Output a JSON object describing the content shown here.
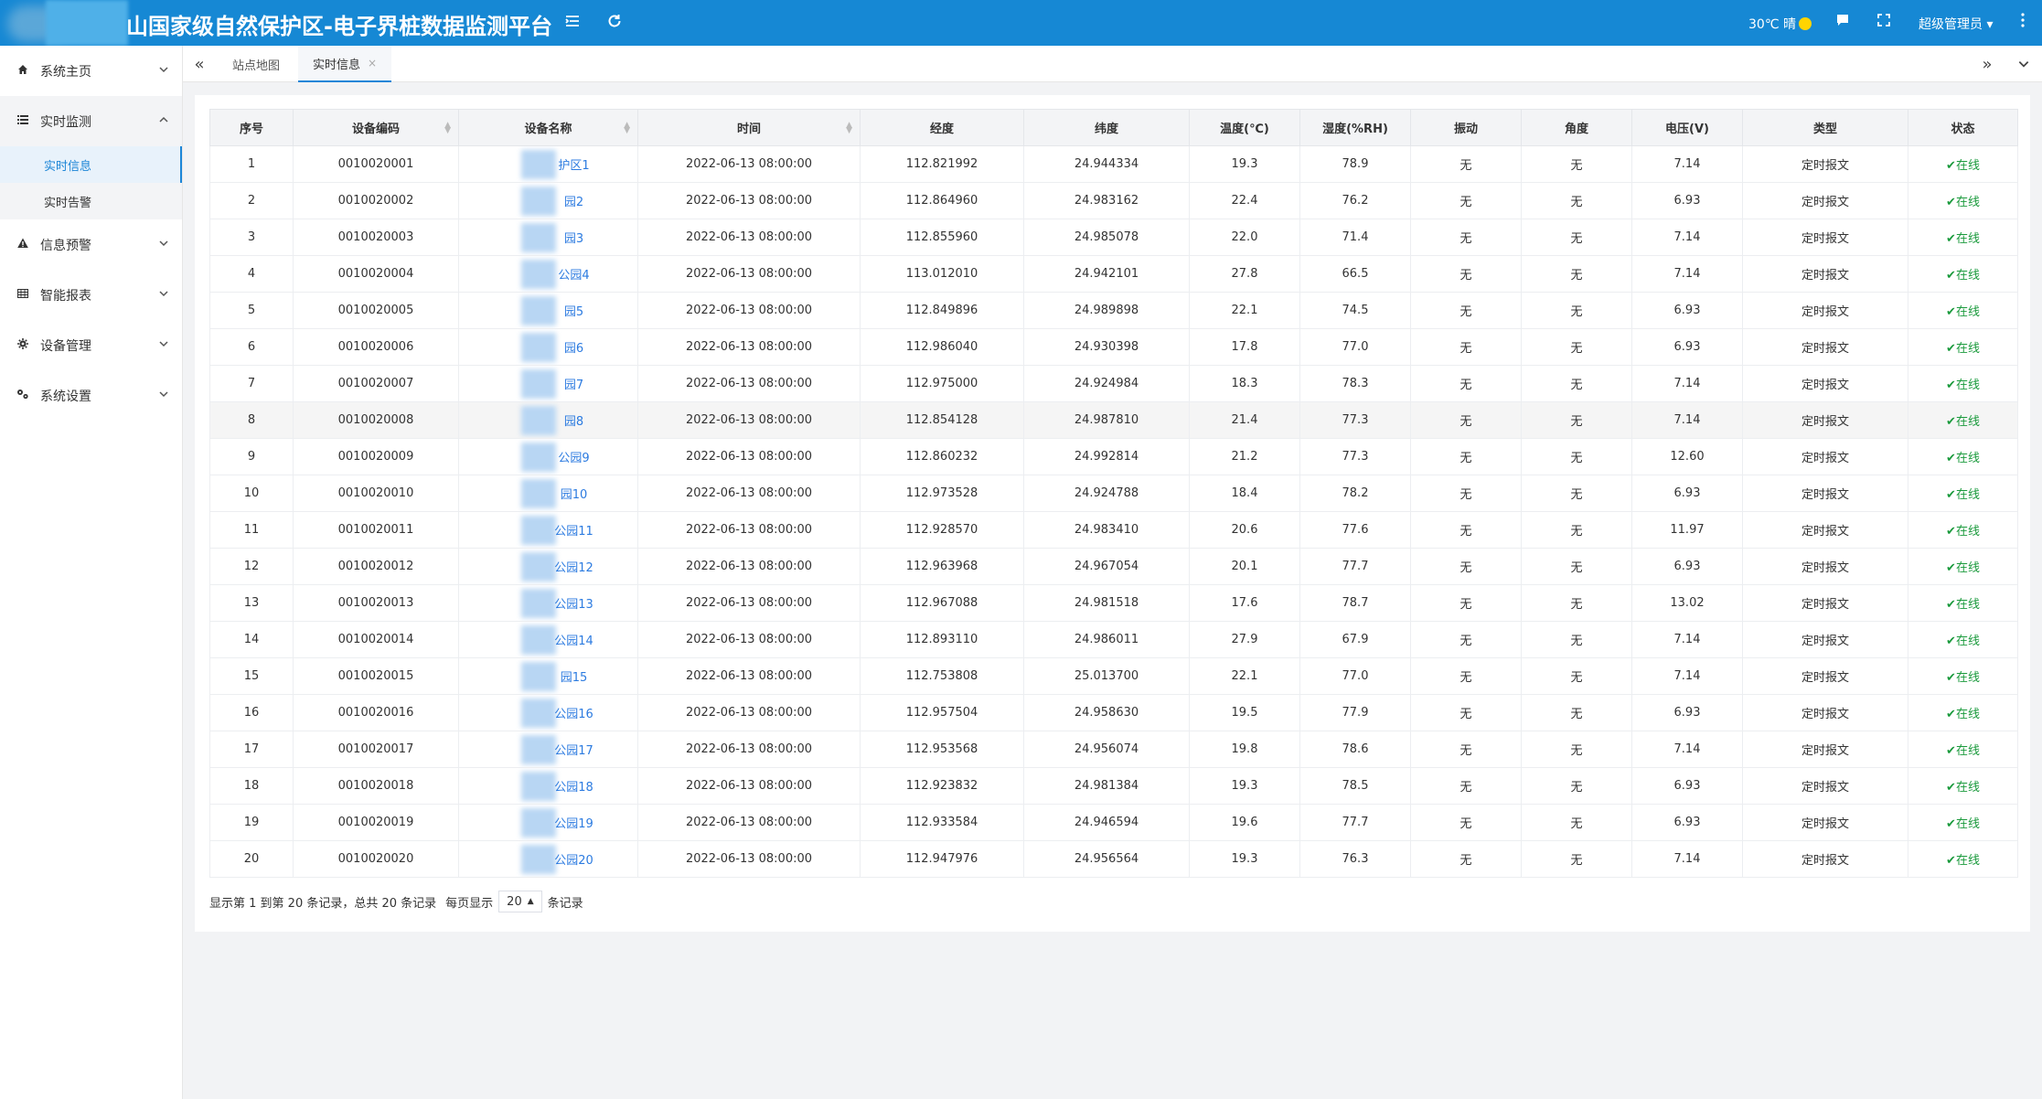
{
  "app": {
    "title": "山国家级自然保护区-电子界桩数据监测平台",
    "weather": "30℃ 晴",
    "user": "超级管理员"
  },
  "icons": {
    "toggle": "menu-fold-icon",
    "refresh": "refresh-icon",
    "message": "message-icon",
    "fullscreen": "fullscreen-icon",
    "more": "more-vertical-icon"
  },
  "sidebar": {
    "items": [
      {
        "label": "系统主页",
        "icon": "home-icon"
      },
      {
        "label": "实时监测",
        "icon": "list-icon",
        "open": true,
        "children": [
          {
            "label": "实时信息",
            "active": true
          },
          {
            "label": "实时告警"
          }
        ]
      },
      {
        "label": "信息预警",
        "icon": "warning-icon"
      },
      {
        "label": "智能报表",
        "icon": "table-icon"
      },
      {
        "label": "设备管理",
        "icon": "gear-icon"
      },
      {
        "label": "系统设置",
        "icon": "settings-icon"
      }
    ]
  },
  "tabs": [
    {
      "label": "站点地图",
      "active": false
    },
    {
      "label": "实时信息",
      "active": true
    }
  ],
  "table": {
    "columns": [
      "序号",
      "设备编码",
      "设备名称",
      "时间",
      "经度",
      "纬度",
      "温度(℃)",
      "湿度(%RH)",
      "振动",
      "角度",
      "电压(V)",
      "类型",
      "状态"
    ],
    "rows": [
      [
        "1",
        "0010020001",
        "护区1",
        "2022-06-13 08:00:00",
        "112.821992",
        "24.944334",
        "19.3",
        "78.9",
        "无",
        "无",
        "7.14",
        "定时报文",
        "在线"
      ],
      [
        "2",
        "0010020002",
        "园2",
        "2022-06-13 08:00:00",
        "112.864960",
        "24.983162",
        "22.4",
        "76.2",
        "无",
        "无",
        "6.93",
        "定时报文",
        "在线"
      ],
      [
        "3",
        "0010020003",
        "园3",
        "2022-06-13 08:00:00",
        "112.855960",
        "24.985078",
        "22.0",
        "71.4",
        "无",
        "无",
        "7.14",
        "定时报文",
        "在线"
      ],
      [
        "4",
        "0010020004",
        "公园4",
        "2022-06-13 08:00:00",
        "113.012010",
        "24.942101",
        "27.8",
        "66.5",
        "无",
        "无",
        "7.14",
        "定时报文",
        "在线"
      ],
      [
        "5",
        "0010020005",
        "园5",
        "2022-06-13 08:00:00",
        "112.849896",
        "24.989898",
        "22.1",
        "74.5",
        "无",
        "无",
        "6.93",
        "定时报文",
        "在线"
      ],
      [
        "6",
        "0010020006",
        "园6",
        "2022-06-13 08:00:00",
        "112.986040",
        "24.930398",
        "17.8",
        "77.0",
        "无",
        "无",
        "6.93",
        "定时报文",
        "在线"
      ],
      [
        "7",
        "0010020007",
        "园7",
        "2022-06-13 08:00:00",
        "112.975000",
        "24.924984",
        "18.3",
        "78.3",
        "无",
        "无",
        "7.14",
        "定时报文",
        "在线"
      ],
      [
        "8",
        "0010020008",
        "园8",
        "2022-06-13 08:00:00",
        "112.854128",
        "24.987810",
        "21.4",
        "77.3",
        "无",
        "无",
        "7.14",
        "定时报文",
        "在线"
      ],
      [
        "9",
        "0010020009",
        "公园9",
        "2022-06-13 08:00:00",
        "112.860232",
        "24.992814",
        "21.2",
        "77.3",
        "无",
        "无",
        "12.60",
        "定时报文",
        "在线"
      ],
      [
        "10",
        "0010020010",
        "园10",
        "2022-06-13 08:00:00",
        "112.973528",
        "24.924788",
        "18.4",
        "78.2",
        "无",
        "无",
        "6.93",
        "定时报文",
        "在线"
      ],
      [
        "11",
        "0010020011",
        "公园11",
        "2022-06-13 08:00:00",
        "112.928570",
        "24.983410",
        "20.6",
        "77.6",
        "无",
        "无",
        "11.97",
        "定时报文",
        "在线"
      ],
      [
        "12",
        "0010020012",
        "公园12",
        "2022-06-13 08:00:00",
        "112.963968",
        "24.967054",
        "20.1",
        "77.7",
        "无",
        "无",
        "6.93",
        "定时报文",
        "在线"
      ],
      [
        "13",
        "0010020013",
        "公园13",
        "2022-06-13 08:00:00",
        "112.967088",
        "24.981518",
        "17.6",
        "78.7",
        "无",
        "无",
        "13.02",
        "定时报文",
        "在线"
      ],
      [
        "14",
        "0010020014",
        "公园14",
        "2022-06-13 08:00:00",
        "112.893110",
        "24.986011",
        "27.9",
        "67.9",
        "无",
        "无",
        "7.14",
        "定时报文",
        "在线"
      ],
      [
        "15",
        "0010020015",
        "园15",
        "2022-06-13 08:00:00",
        "112.753808",
        "25.013700",
        "22.1",
        "77.0",
        "无",
        "无",
        "7.14",
        "定时报文",
        "在线"
      ],
      [
        "16",
        "0010020016",
        "公园16",
        "2022-06-13 08:00:00",
        "112.957504",
        "24.958630",
        "19.5",
        "77.9",
        "无",
        "无",
        "6.93",
        "定时报文",
        "在线"
      ],
      [
        "17",
        "0010020017",
        "公园17",
        "2022-06-13 08:00:00",
        "112.953568",
        "24.956074",
        "19.8",
        "78.6",
        "无",
        "无",
        "7.14",
        "定时报文",
        "在线"
      ],
      [
        "18",
        "0010020018",
        "公园18",
        "2022-06-13 08:00:00",
        "112.923832",
        "24.981384",
        "19.3",
        "78.5",
        "无",
        "无",
        "6.93",
        "定时报文",
        "在线"
      ],
      [
        "19",
        "0010020019",
        "公园19",
        "2022-06-13 08:00:00",
        "112.933584",
        "24.946594",
        "19.6",
        "77.7",
        "无",
        "无",
        "6.93",
        "定时报文",
        "在线"
      ],
      [
        "20",
        "0010020020",
        "公园20",
        "2022-06-13 08:00:00",
        "112.947976",
        "24.956564",
        "19.3",
        "76.3",
        "无",
        "无",
        "7.14",
        "定时报文",
        "在线"
      ]
    ],
    "highlight_row": 8
  },
  "pager": {
    "summary": "显示第 1 到第 20 条记录，总共 20 条记录",
    "per_page_prefix": "每页显示",
    "per_page_value": "20",
    "per_page_suffix": "条记录"
  },
  "colors": {
    "header": "#1688d4",
    "accent": "#1d86d7",
    "online": "#1a9a3c",
    "link": "#2c7be0"
  }
}
